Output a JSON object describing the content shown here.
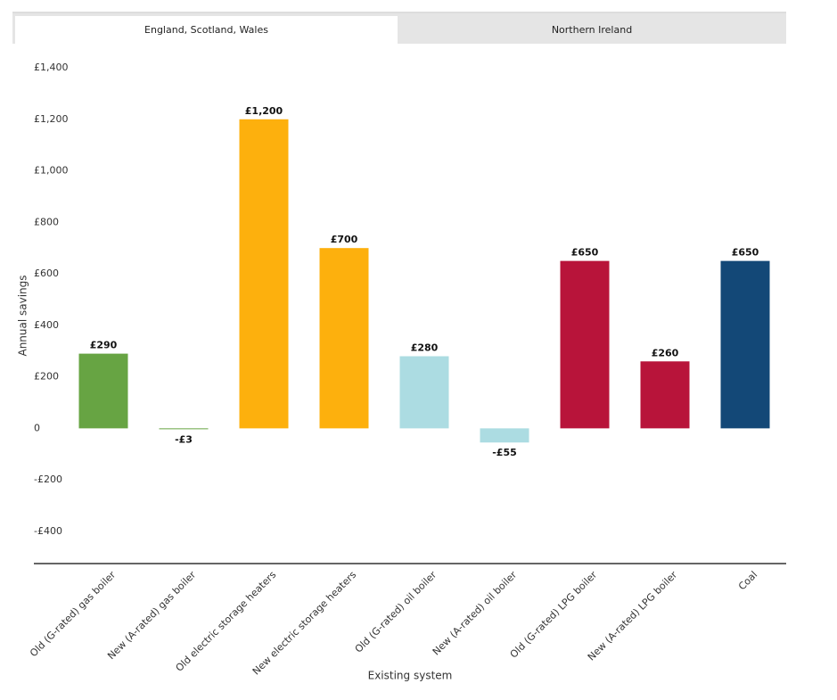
{
  "tabs": [
    "England, Scotland, Wales",
    "Northern Ireland"
  ],
  "active_tab": 0,
  "chart_data": {
    "type": "bar",
    "x_label": "Existing system",
    "y_label": "Annual savings",
    "categories": [
      "Old (G-rated) gas boiler",
      "New (A-rated) gas boiler",
      "Old electric storage heaters",
      "New electric storage heaters",
      "Old (G-rated) oil boiler",
      "New (A-rated) oil boiler",
      "Old (G-rated) LPG boiler",
      "New (A-rated) LPG boiler",
      "Coal"
    ],
    "values": [
      290,
      -3,
      1200,
      700,
      280,
      -55,
      650,
      260,
      650
    ],
    "value_labels": [
      "£290",
      "-£3",
      "£1,200",
      "£700",
      "£280",
      "-£55",
      "£650",
      "£260",
      "£650"
    ],
    "colors": [
      "#67a443",
      "#67a443",
      "#fdb00d",
      "#fdb00d",
      "#acdce2",
      "#acdce2",
      "#b8143a",
      "#b8143a",
      "#134877"
    ],
    "ylim": [
      -525,
      1400
    ],
    "yticks": [
      {
        "value": 1400,
        "label": "£1,400"
      },
      {
        "value": 1200,
        "label": "£1,200"
      },
      {
        "value": 1000,
        "label": "£1,000"
      },
      {
        "value": 800,
        "label": "£800"
      },
      {
        "value": 600,
        "label": "£600"
      },
      {
        "value": 400,
        "label": "£400"
      },
      {
        "value": 200,
        "label": "£200"
      },
      0,
      {
        "value": -200,
        "label": "-£200"
      },
      {
        "value": -400,
        "label": "-£400"
      }
    ]
  }
}
